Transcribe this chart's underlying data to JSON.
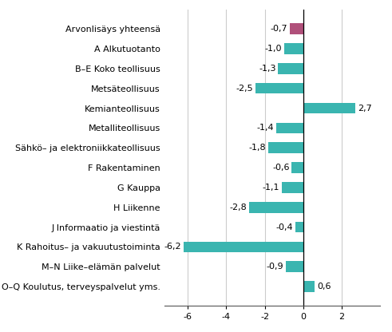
{
  "categories": [
    "Arvonlisäys yhteensä",
    "A Alkutuotanto",
    "B–E Koko teollisuus",
    "Metsäteollisuus",
    "Kemianteollisuus",
    "Metalliteollisuus",
    "Sähkö– ja elektroniikkateollisuus",
    "F Rakentaminen",
    "G Kauppa",
    "H Liikenne",
    "J Informaatio ja viestintä",
    "K Rahoitus– ja vakuutustoiminta",
    "M–N Liike–elämän palvelut",
    "O–Q Koulutus, terveyspalvelut yms."
  ],
  "values": [
    -0.7,
    -1.0,
    -1.3,
    -2.5,
    2.7,
    -1.4,
    -1.8,
    -0.6,
    -1.1,
    -2.8,
    -0.4,
    -6.2,
    -0.9,
    0.6
  ],
  "bar_colors": [
    "#b0507a",
    "#3ab5b0",
    "#3ab5b0",
    "#3ab5b0",
    "#3ab5b0",
    "#3ab5b0",
    "#3ab5b0",
    "#3ab5b0",
    "#3ab5b0",
    "#3ab5b0",
    "#3ab5b0",
    "#3ab5b0",
    "#3ab5b0",
    "#3ab5b0"
  ],
  "xlim": [
    -7.2,
    4.0
  ],
  "xticks": [
    -6,
    -4,
    -2,
    0,
    2
  ],
  "value_fontsize": 8,
  "label_fontsize": 8,
  "tick_fontsize": 8,
  "background_color": "#ffffff",
  "grid_color": "#cccccc"
}
